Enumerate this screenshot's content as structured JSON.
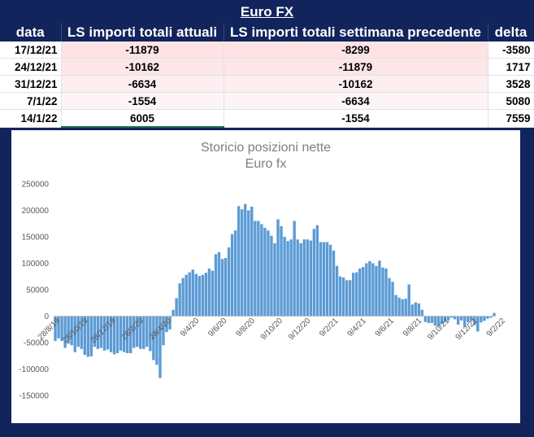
{
  "header": {
    "title": "Euro FX"
  },
  "table": {
    "columns": [
      "data",
      "LS importi totali  attuali",
      "LS importi totali settimana precedente",
      "delta"
    ],
    "rows": [
      {
        "date": "17/12/21",
        "current": "-11879",
        "previous": "-8299",
        "delta": "-3580"
      },
      {
        "date": "24/12/21",
        "current": "-10162",
        "previous": "-11879",
        "delta": "1717"
      },
      {
        "date": "31/12/21",
        "current": "-6634",
        "previous": "-10162",
        "delta": "3528"
      },
      {
        "date": "7/1/22",
        "current": "-1554",
        "previous": "-6634",
        "delta": "5080"
      },
      {
        "date": "14/1/22",
        "current": "6005",
        "previous": "-1554",
        "delta": "7559"
      }
    ],
    "row_colors": [
      "#fde3e4",
      "#fde6e7",
      "#fdeeef",
      "#fcf4f6",
      "#ffffff"
    ]
  },
  "chart_data": {
    "type": "bar",
    "title": "Storicio posizioni nette",
    "subtitle": "Euro fx",
    "bar_color": "#5b9bd5",
    "ylim": [
      -150000,
      250000
    ],
    "yticks": [
      250000,
      200000,
      150000,
      100000,
      50000,
      0,
      -50000,
      -100000,
      -150000
    ],
    "xtick_labels": [
      "28/8/19",
      "28/10/19",
      "28/12/19",
      "28/2/20",
      "28/4/20",
      "9/4/20",
      "9/6/20",
      "9/8/20",
      "9/10/20",
      "9/12/20",
      "9/2/21",
      "9/4/21",
      "9/6/21",
      "9/8/21",
      "9/10/21",
      "9/12/21",
      "9/2/22"
    ],
    "values": [
      -47000,
      -42000,
      -47000,
      -60000,
      -52000,
      -55000,
      -68000,
      -58000,
      -62000,
      -73000,
      -77000,
      -76000,
      -58000,
      -62000,
      -60000,
      -65000,
      -63000,
      -68000,
      -72000,
      -70000,
      -65000,
      -68000,
      -70000,
      -70000,
      -60000,
      -58000,
      -62000,
      -62000,
      -58000,
      -66000,
      -83000,
      -92000,
      -117000,
      -55000,
      -30000,
      -25000,
      12000,
      34000,
      62000,
      72000,
      78000,
      83000,
      88000,
      80000,
      76000,
      78000,
      82000,
      90000,
      86000,
      117000,
      121000,
      108000,
      110000,
      130000,
      155000,
      162000,
      208000,
      202000,
      212000,
      200000,
      207000,
      180000,
      180000,
      174000,
      167000,
      162000,
      152000,
      138000,
      183000,
      170000,
      150000,
      142000,
      145000,
      180000,
      145000,
      138000,
      145000,
      145000,
      143000,
      165000,
      172000,
      140000,
      140000,
      140000,
      135000,
      124000,
      95000,
      75000,
      73000,
      68000,
      68000,
      82000,
      83000,
      90000,
      93000,
      100000,
      104000,
      100000,
      95000,
      105000,
      92000,
      90000,
      72000,
      65000,
      40000,
      35000,
      32000,
      33000,
      60000,
      22000,
      26000,
      24000,
      12000,
      -11000,
      -13000,
      -13000,
      -18000,
      -19000,
      -15000,
      -12000,
      -8000,
      -3000,
      -6000,
      -16000,
      -8000,
      -20000,
      -11000,
      -9000,
      -17000,
      -29000,
      -12000,
      -9000,
      -5000,
      -3000,
      6000
    ]
  }
}
